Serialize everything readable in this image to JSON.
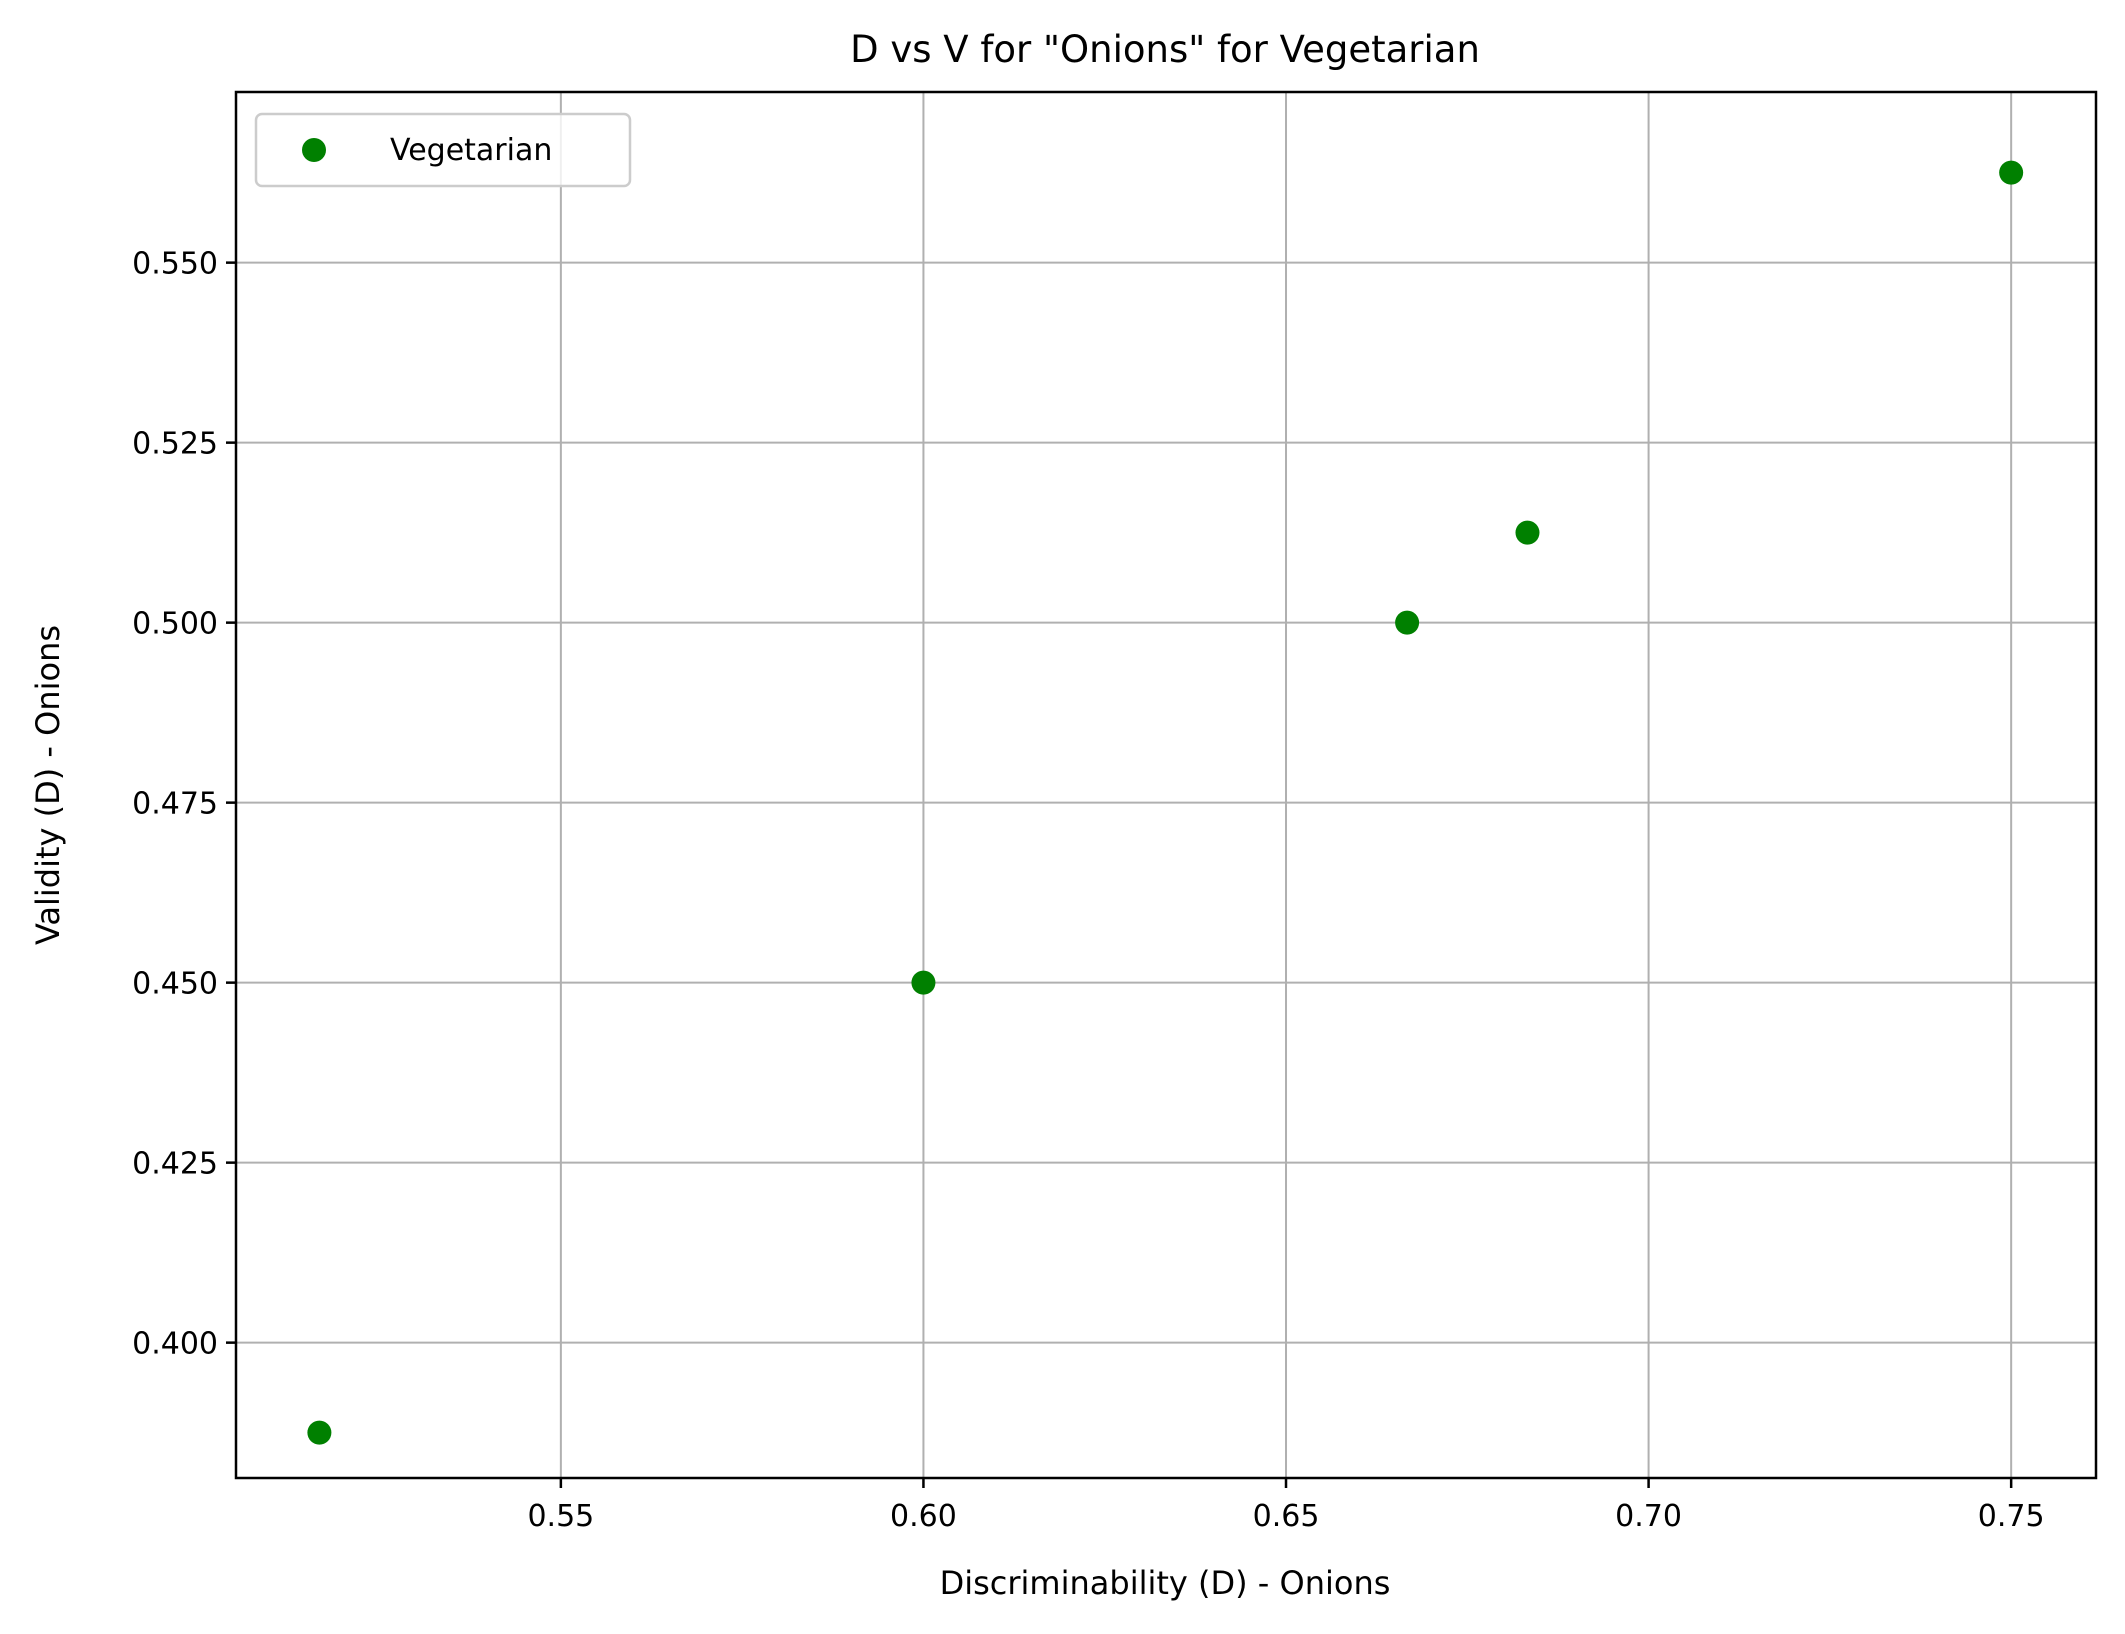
{
  "chart_data": {
    "type": "scatter",
    "title": "D vs V for \"Onions\" for Vegetarian",
    "xlabel": "Discriminability (D) - Onions",
    "ylabel": "Validity (D) - Onions",
    "xlim": [
      0.5052,
      0.7617
    ],
    "ylim": [
      0.3812,
      0.5737
    ],
    "xticks": [
      0.55,
      0.6,
      0.65,
      0.7,
      0.75
    ],
    "xtick_labels": [
      "0.55",
      "0.60",
      "0.65",
      "0.70",
      "0.75"
    ],
    "yticks": [
      0.4,
      0.425,
      0.45,
      0.475,
      0.5,
      0.525,
      0.55
    ],
    "ytick_labels": [
      "0.400",
      "0.425",
      "0.450",
      "0.475",
      "0.500",
      "0.525",
      "0.550"
    ],
    "grid": true,
    "legend_position": "top-left",
    "series": [
      {
        "name": "Vegetarian",
        "color": "#008000",
        "points": [
          {
            "x": 0.5167,
            "y": 0.3875
          },
          {
            "x": 0.6,
            "y": 0.45
          },
          {
            "x": 0.6667,
            "y": 0.5
          },
          {
            "x": 0.6833,
            "y": 0.5125
          },
          {
            "x": 0.75,
            "y": 0.5625
          }
        ]
      }
    ]
  }
}
